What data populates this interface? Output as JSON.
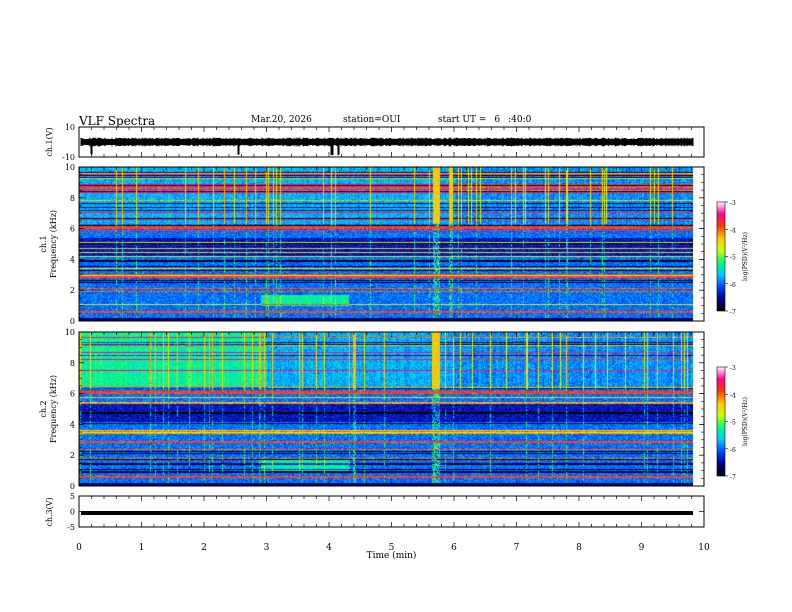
{
  "header": {
    "title": "VLF Spectra",
    "date": "Mar.20, 2026",
    "station_label": "station=",
    "station": "OUI",
    "start_label": "start UT =",
    "start_h": "6",
    "start_rest": ":40:0"
  },
  "chart_data": [
    {
      "type": "line",
      "panel": "ch1-waveform",
      "ylabel": "ch.1(V)",
      "ylim": [
        -10,
        10
      ],
      "yticks": [
        "10",
        "-10"
      ],
      "xlim": [
        0,
        10
      ],
      "description_values": {
        "baseline": 0,
        "noise_amplitude": 1,
        "spikes_at_min": [
          0.2,
          2.55,
          4.05,
          4.15
        ]
      }
    },
    {
      "type": "heatmap",
      "panel": "ch1-spectrogram",
      "ylabel": "Frequency (kHz)",
      "channel_label": "ch.1",
      "ylim": [
        0,
        10
      ],
      "yticks": [
        "0",
        "2",
        "4",
        "6",
        "8",
        "10"
      ],
      "xlim": [
        0,
        9.8
      ],
      "colorbar": {
        "label": "log(PSD)(V²/Hz)",
        "range": [
          -7,
          -3
        ],
        "ticks": [
          "-3",
          "-4",
          "-5",
          "-6",
          "-7"
        ]
      }
    },
    {
      "type": "heatmap",
      "panel": "ch2-spectrogram",
      "ylabel": "Frequency (kHz)",
      "channel_label": "ch.2",
      "ylim": [
        0,
        10
      ],
      "yticks": [
        "0",
        "2",
        "4",
        "6",
        "8",
        "10"
      ],
      "xlim": [
        0,
        9.8
      ],
      "colorbar": {
        "label": "log(PSD)(V²/Hz)",
        "range": [
          -7,
          -3
        ],
        "ticks": [
          "-3",
          "-4",
          "-5",
          "-6",
          "-7"
        ]
      }
    },
    {
      "type": "line",
      "panel": "ch3-waveform",
      "ylabel": "ch.3(V)",
      "ylim": [
        -5,
        5
      ],
      "yticks": [
        "5",
        "0",
        "-5"
      ],
      "xlim": [
        0,
        10
      ],
      "description_values": {
        "level": -0.5
      }
    }
  ],
  "xaxis": {
    "label": "Time (min)",
    "ticks": [
      "0",
      "1",
      "2",
      "3",
      "4",
      "5",
      "6",
      "7",
      "8",
      "9",
      "10"
    ]
  }
}
